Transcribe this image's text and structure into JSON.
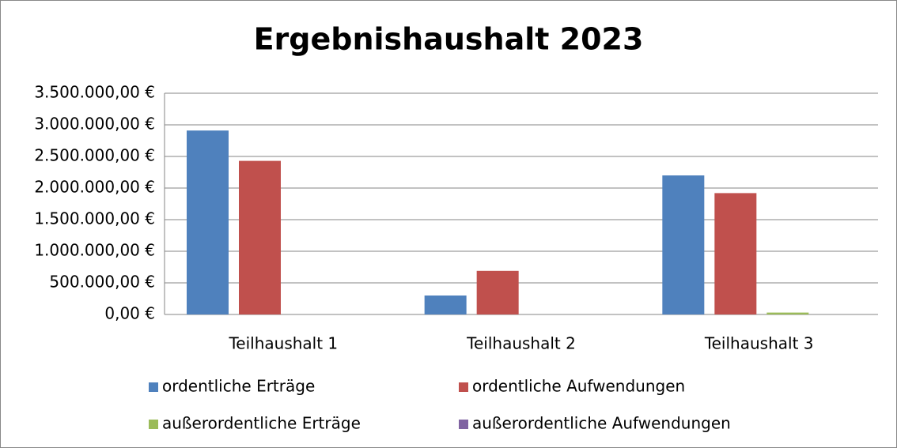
{
  "chart_data": {
    "type": "bar",
    "title": "Ergebnishaushalt 2023",
    "categories": [
      "Teilhaushalt 1",
      "Teilhaushalt 2",
      "Teilhaushalt 3"
    ],
    "series": [
      {
        "name": "ordentliche Erträge",
        "color": "#4f81bd",
        "values": [
          2910000,
          300000,
          2200000
        ]
      },
      {
        "name": "ordentliche Aufwendungen",
        "color": "#c0504d",
        "values": [
          2430000,
          690000,
          1920000
        ]
      },
      {
        "name": "außerordentliche Erträge",
        "color": "#9bbb59",
        "values": [
          0,
          0,
          30000
        ]
      },
      {
        "name": "außerordentliche Aufwendungen",
        "color": "#8064a2",
        "values": [
          0,
          0,
          0
        ]
      }
    ],
    "ylim": [
      0,
      3500000
    ],
    "yticks": [
      {
        "value": 0,
        "label": "0,00 €"
      },
      {
        "value": 500000,
        "label": "500.000,00 €"
      },
      {
        "value": 1000000,
        "label": "1.000.000,00 €"
      },
      {
        "value": 1500000,
        "label": "1.500.000,00 €"
      },
      {
        "value": 2000000,
        "label": "2.000.000,00 €"
      },
      {
        "value": 2500000,
        "label": "2.500.000,00 €"
      },
      {
        "value": 3000000,
        "label": "3.000.000,00 €"
      },
      {
        "value": 3500000,
        "label": "3.500.000,00 €"
      }
    ],
    "grid": true
  }
}
